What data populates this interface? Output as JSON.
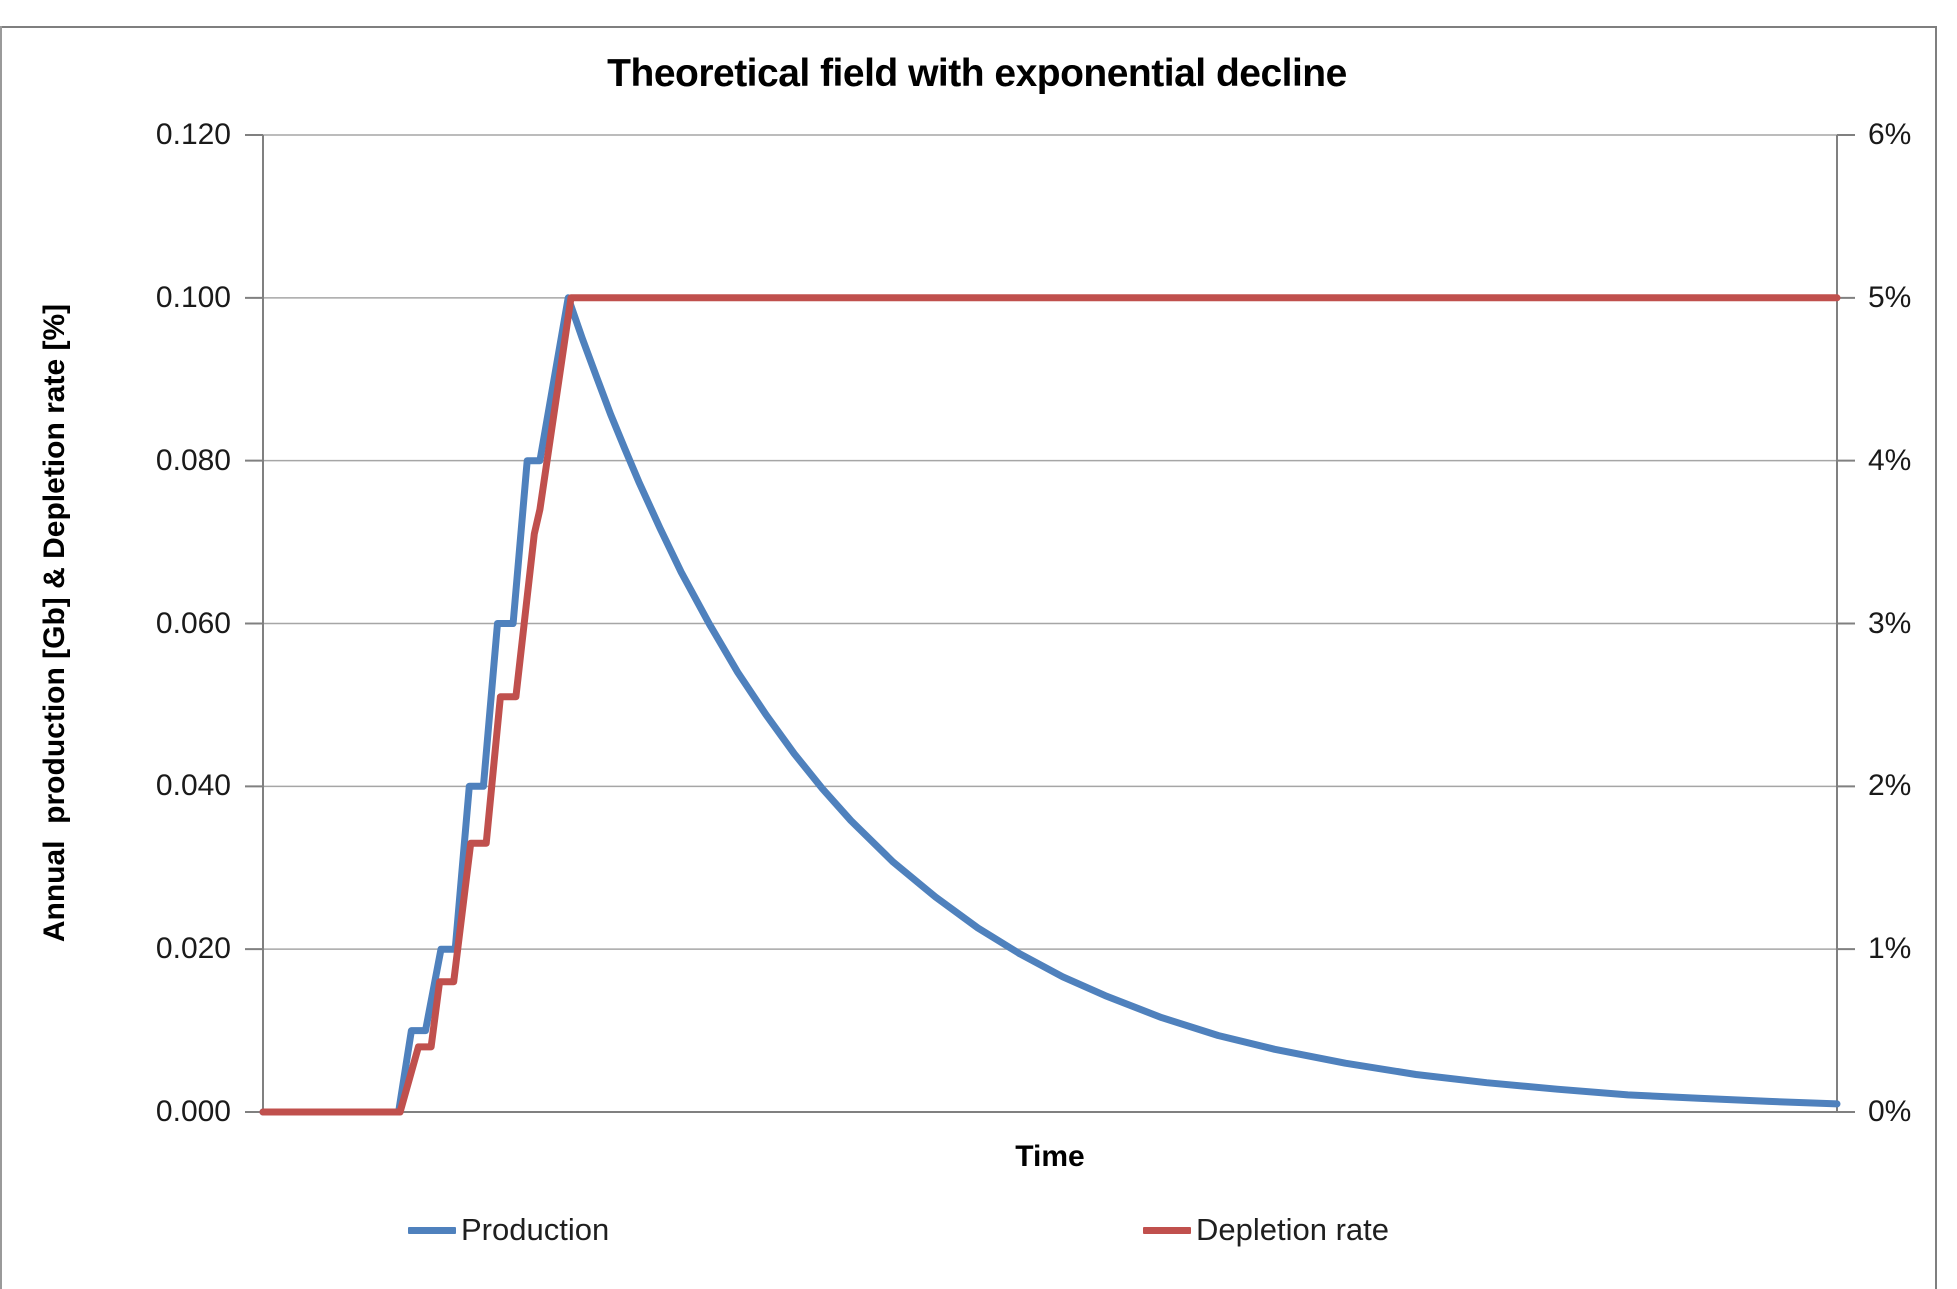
{
  "chart_data": {
    "type": "line",
    "title": "Theoretical field with exponential decline",
    "xlabel": "Time",
    "ylabel_left": "Annual  production [Gb] & Depletion rate [%]",
    "x_axis": {
      "label": "Time",
      "range": [
        0,
        111.4
      ],
      "tick_labels_visible": false
    },
    "y_axis_left": {
      "range": [
        0,
        0.12
      ],
      "tick_step": 0.02,
      "tick_labels": [
        "0.000",
        "0.020",
        "0.040",
        "0.060",
        "0.080",
        "0.100",
        "0.120"
      ]
    },
    "y_axis_right": {
      "range": [
        0,
        6
      ],
      "unit": "%",
      "tick_step": 1,
      "tick_labels": [
        "0%",
        "1%",
        "2%",
        "3%",
        "4%",
        "5%",
        "6%"
      ]
    },
    "grid": true,
    "legend_position": "bottom",
    "colors": {
      "gridline": "#a6a6a6",
      "axis": "#808080",
      "text": "#1a1a1a"
    },
    "series": [
      {
        "name": "Production",
        "color": "#4F81BD",
        "axis": "left",
        "unit": "Gb",
        "peak_value": 0.1,
        "points": [
          [
            0,
            0
          ],
          [
            9.6,
            0
          ],
          [
            10.5,
            0.01
          ],
          [
            11.5,
            0.01
          ],
          [
            12.6,
            0.02
          ],
          [
            13.6,
            0.02
          ],
          [
            14.6,
            0.04
          ],
          [
            15.6,
            0.04
          ],
          [
            16.6,
            0.06
          ],
          [
            17.7,
            0.06
          ],
          [
            18.7,
            0.08
          ],
          [
            19.6,
            0.08
          ],
          [
            21.6,
            0.1
          ],
          [
            22.6,
            0.095
          ],
          [
            23.6,
            0.0903
          ],
          [
            24.6,
            0.0857
          ],
          [
            25.6,
            0.0815
          ],
          [
            26.6,
            0.0774
          ],
          [
            28.1,
            0.0717
          ],
          [
            29.6,
            0.0663
          ],
          [
            31.6,
            0.0599
          ],
          [
            33.6,
            0.054
          ],
          [
            35.6,
            0.0488
          ],
          [
            37.6,
            0.044
          ],
          [
            39.6,
            0.0397
          ],
          [
            41.6,
            0.0358
          ],
          [
            44.6,
            0.0307
          ],
          [
            47.6,
            0.0264
          ],
          [
            50.6,
            0.0226
          ],
          [
            53.6,
            0.0194
          ],
          [
            56.6,
            0.0166
          ],
          [
            59.6,
            0.0143
          ],
          [
            63.6,
            0.0116
          ],
          [
            67.6,
            0.0094
          ],
          [
            71.6,
            0.0077
          ],
          [
            76.6,
            0.006
          ],
          [
            81.6,
            0.0046
          ],
          [
            86.6,
            0.0036
          ],
          [
            91.6,
            0.0028
          ],
          [
            96.6,
            0.0021
          ],
          [
            101.6,
            0.0017
          ],
          [
            106.6,
            0.0013
          ],
          [
            111.4,
            0.001
          ]
        ]
      },
      {
        "name": "Depletion rate",
        "color": "#C0504D",
        "axis": "right",
        "unit": "%",
        "plateau_value": 5,
        "points": [
          [
            0,
            0
          ],
          [
            9.7,
            0
          ],
          [
            11.0,
            0.4
          ],
          [
            11.9,
            0.4
          ],
          [
            12.5,
            0.8
          ],
          [
            13.5,
            0.8
          ],
          [
            14.7,
            1.65
          ],
          [
            15.8,
            1.65
          ],
          [
            16.8,
            2.55
          ],
          [
            17.9,
            2.55
          ],
          [
            19.2,
            3.55
          ],
          [
            19.6,
            3.7
          ],
          [
            21.8,
            5
          ],
          [
            111.4,
            5
          ]
        ]
      }
    ]
  }
}
